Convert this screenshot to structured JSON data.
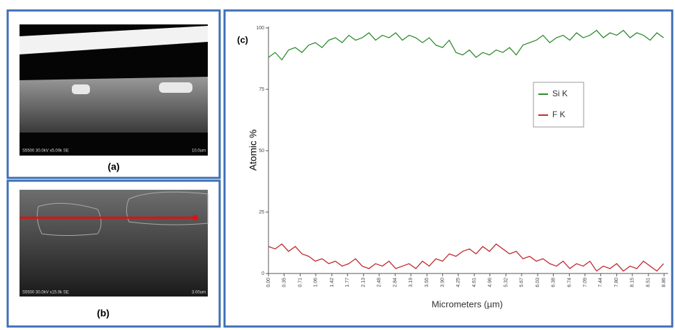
{
  "panels": {
    "a": {
      "label": "(a)",
      "caption": "S5500 30.0kV x5.00k SE",
      "scale": "10.0um"
    },
    "b": {
      "label": "(b)",
      "caption": "S5500 30.0kV x15.0k SE",
      "scale": "3.00um"
    }
  },
  "chart_data": {
    "type": "line",
    "title": "(c)",
    "x_label": "Micrometers (µm)",
    "y_label": "Atomic %",
    "x": [
      0,
      0.15,
      0.3,
      0.45,
      0.6,
      0.75,
      0.9,
      1.05,
      1.2,
      1.35,
      1.5,
      1.65,
      1.8,
      1.95,
      2.1,
      2.25,
      2.4,
      2.55,
      2.7,
      2.85,
      3,
      3.15,
      3.3,
      3.45,
      3.6,
      3.75,
      3.9,
      4.05,
      4.2,
      4.35,
      4.5,
      4.65,
      4.8,
      4.95,
      5.1,
      5.25,
      5.4,
      5.55,
      5.7,
      5.85,
      6,
      6.15,
      6.3,
      6.45,
      6.6,
      6.75,
      6.9,
      7.05,
      7.2,
      7.35,
      7.5,
      7.65,
      7.8,
      7.95,
      8.1,
      8.25,
      8.4,
      8.55,
      8.7,
      8.85
    ],
    "series": [
      {
        "name": "Si K",
        "color": "#2e8b2e",
        "values": [
          88,
          90,
          87,
          91,
          92,
          90,
          93,
          94,
          92,
          95,
          96,
          94,
          97,
          95,
          96,
          98,
          95,
          97,
          96,
          98,
          95,
          97,
          96,
          94,
          96,
          93,
          92,
          95,
          90,
          89,
          91,
          88,
          90,
          89,
          91,
          90,
          92,
          89,
          93,
          94,
          95,
          97,
          94,
          96,
          97,
          95,
          98,
          96,
          97,
          99,
          96,
          98,
          97,
          99,
          96,
          98,
          97,
          95,
          98,
          96
        ]
      },
      {
        "name": "F K",
        "color": "#c0282d",
        "values": [
          11,
          10,
          12,
          9,
          11,
          8,
          7,
          5,
          6,
          4,
          5,
          3,
          4,
          6,
          3,
          2,
          4,
          3,
          5,
          2,
          3,
          4,
          2,
          5,
          3,
          6,
          5,
          8,
          7,
          9,
          10,
          8,
          11,
          9,
          12,
          10,
          8,
          9,
          6,
          7,
          5,
          6,
          4,
          3,
          5,
          2,
          4,
          3,
          5,
          1,
          3,
          2,
          4,
          1,
          3,
          2,
          5,
          3,
          1,
          4
        ]
      }
    ],
    "xlim": [
      0,
      8.95
    ],
    "xticks": [
      {
        "value": 0,
        "label": "0.00"
      },
      0.35,
      0.71,
      1.06,
      1.42,
      1.77,
      2.13,
      2.48,
      2.84,
      3.19,
      3.55,
      {
        "value": 3.9,
        "label": "3.90"
      },
      4.25,
      4.61,
      4.96,
      5.32,
      5.67,
      6.03,
      6.38,
      6.74,
      7.09,
      7.44,
      {
        "value": 7.8,
        "label": "7.80"
      },
      8.15,
      8.51,
      8.86
    ],
    "ylim": [
      0,
      100
    ],
    "yticks": [
      0,
      25,
      50,
      75,
      100
    ]
  }
}
